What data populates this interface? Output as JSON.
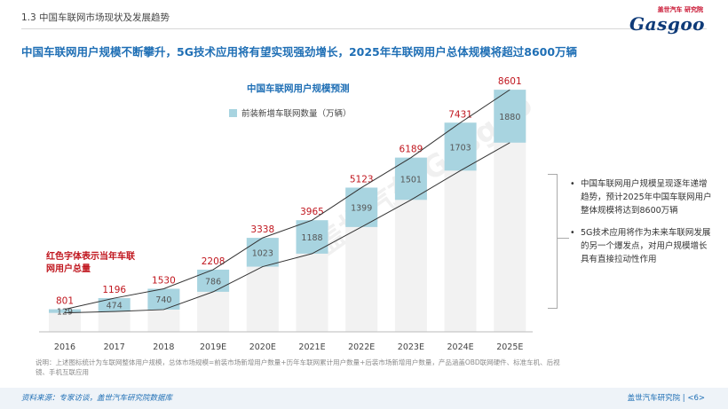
{
  "section_title": "1.3 中国车联网市场现状及发展趋势",
  "logo": {
    "tag": "盖世汽车 研究院",
    "word": "Gasgoo"
  },
  "headline": "中国车联网用户规模不断攀升，5G技术应用将有望实现强劲增长，2025年车联网用户总体规模将超过8600万辆",
  "watermark": "盖世汽车 Gasgoo",
  "chart_data": {
    "type": "bar",
    "title": "中国车联网用户规模预测",
    "categories": [
      "2016",
      "2017",
      "2018",
      "2019E",
      "2020E",
      "2021E",
      "2022E",
      "2023E",
      "2024E",
      "2025E"
    ],
    "series": [
      {
        "name": "前装新增车联网数量（万辆）",
        "values": [
          129,
          474,
          740,
          786,
          1023,
          1188,
          1399,
          1501,
          1703,
          1880
        ],
        "color": "#a8d4e0"
      }
    ],
    "totals": [
      801,
      1196,
      1530,
      2208,
      3338,
      3965,
      5123,
      6189,
      7431,
      8601
    ],
    "totals_color": "#c0161e",
    "ylim": [
      0,
      8700
    ]
  },
  "note_red": "红色字体表示当年车联网用户总量",
  "bullets": [
    "中国车联网用户规模呈现逐年递增趋势，预计2025年中国车联网用户整体规模将达到8600万辆",
    "5G技术应用将作为未来车联网发展的另一个爆发点，对用户规模增长具有直接拉动性作用"
  ],
  "bullet_char": "•",
  "footnote": "说明：上述图标统计为车联网整体用户规模，总体市场规模=前装市场新增用户数量+历年车联网累计用户数量+后装市场新增用户数量，产品涵盖OBD联网硬件、标准车机、后视镜、手机互联应用",
  "footer": {
    "source": "资料来源：专家访谈，盖世汽车研究院数据库",
    "brand": "盖世汽车研究院 | <6>"
  }
}
